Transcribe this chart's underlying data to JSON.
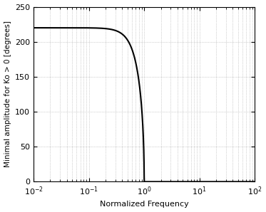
{
  "xlim": [
    0.01,
    100
  ],
  "ylim": [
    0,
    250
  ],
  "yticks": [
    0,
    50,
    100,
    150,
    200,
    250
  ],
  "xlabel": "Normalized Frequency",
  "ylabel": "Minimal amplitude for Ko > 0 [degrees]",
  "line_color": "#000000",
  "line_width": 1.5,
  "grid_color": "#aaaaaa",
  "grid_linestyle": ":",
  "grid_linewidth": 0.5,
  "background_color": "#ffffff",
  "asymptote_value": 220.0,
  "curve_power": 3.0
}
